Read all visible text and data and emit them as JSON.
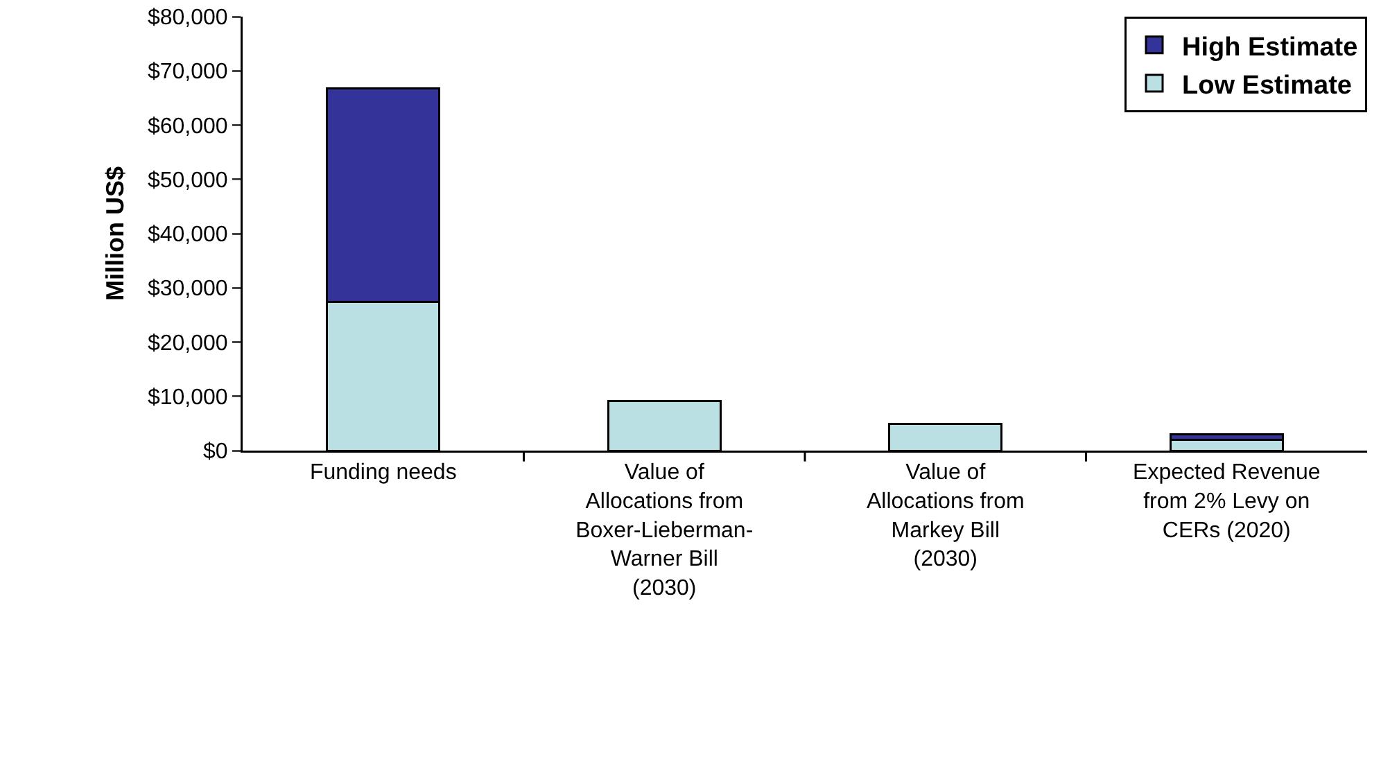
{
  "chart_data": {
    "type": "bar",
    "stacked": true,
    "ylabel": "Million US$",
    "categories": [
      "Funding needs",
      "Value of Allocations from Boxer-Lieberman-Warner Bill (2030)",
      "Value of Allocations from Markey Bill (2030)",
      "Expected Revenue from 2% Levy on CERs (2020)"
    ],
    "series": [
      {
        "name": "Low Estimate",
        "color": "#bbe0e3",
        "values": [
          27400,
          9100,
          4900,
          2000
        ]
      },
      {
        "name": "High Estimate",
        "color": "#333399",
        "values": [
          39400,
          null,
          null,
          1000
        ]
      }
    ],
    "ylim": [
      0,
      80000
    ],
    "yticks": [
      {
        "value": 0,
        "label": "$0"
      },
      {
        "value": 10000,
        "label": "$10,000"
      },
      {
        "value": 20000,
        "label": "$20,000"
      },
      {
        "value": 30000,
        "label": "$30,000"
      },
      {
        "value": 40000,
        "label": "$40,000"
      },
      {
        "value": 50000,
        "label": "$50,000"
      },
      {
        "value": 60000,
        "label": "$60,000"
      },
      {
        "value": 70000,
        "label": "$70,000"
      },
      {
        "value": 80000,
        "label": "$80,000"
      }
    ],
    "grid": false,
    "legend": "top right"
  }
}
